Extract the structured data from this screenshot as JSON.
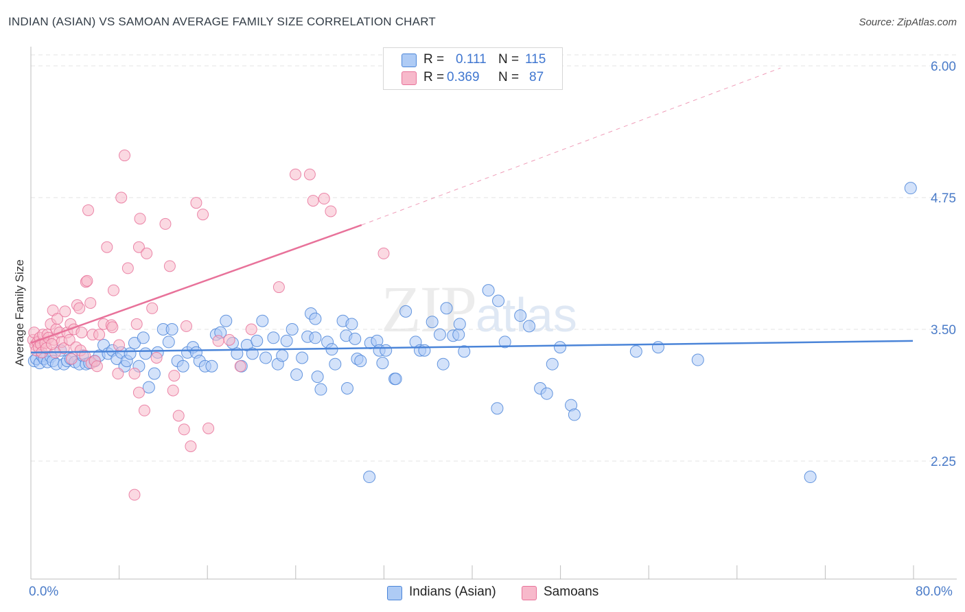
{
  "header": {
    "title": "INDIAN (ASIAN) VS SAMOAN AVERAGE FAMILY SIZE CORRELATION CHART",
    "source": "Source: ZipAtlas.com"
  },
  "watermark": {
    "zip": "ZIP",
    "atlas": "atlas"
  },
  "stats": [
    {
      "r_label": "R =",
      "r_value": "0.111",
      "n_label": "N =",
      "n_value": "115",
      "color": "#aecbf5"
    },
    {
      "r_label": "R =",
      "r_value": "0.369",
      "n_label": "N =",
      "n_value": "87",
      "color": "#f7b9cb"
    }
  ],
  "legend": [
    {
      "label": "Indians (Asian)",
      "color": "#aecbf5"
    },
    {
      "label": "Samoans",
      "color": "#f7b9cb"
    }
  ],
  "axes": {
    "x_min_label": "0.0%",
    "x_max_label": "80.0%",
    "y_label": "Average Family Size",
    "y_ticks": [
      "6.00",
      "4.75",
      "3.50",
      "2.25"
    ]
  },
  "chart_data": {
    "type": "scatter",
    "title": "INDIAN (ASIAN) VS SAMOAN AVERAGE FAMILY SIZE CORRELATION CHART",
    "xlabel": "",
    "ylabel": "Average Family Size",
    "xlim": [
      0,
      80
    ],
    "ylim": [
      1.0,
      6.1
    ],
    "y_ticks": [
      2.25,
      3.5,
      4.75,
      6.0
    ],
    "grid": "horizontal dashed",
    "legend_position": "bottom-center",
    "series": [
      {
        "name": "Indians (Asian)",
        "color": "#4a84d8",
        "fill": "#aecbf5",
        "trend": {
          "x": [
            0,
            80
          ],
          "y": [
            3.28,
            3.39
          ],
          "style": "solid"
        },
        "points": [
          [
            0.3,
            3.2
          ],
          [
            0.5,
            3.22
          ],
          [
            0.8,
            3.18
          ],
          [
            1.0,
            3.25
          ],
          [
            1.2,
            3.22
          ],
          [
            1.5,
            3.19
          ],
          [
            1.8,
            3.24
          ],
          [
            2.0,
            3.2
          ],
          [
            2.3,
            3.17
          ],
          [
            2.7,
            3.3
          ],
          [
            3.0,
            3.17
          ],
          [
            3.3,
            3.2
          ],
          [
            3.6,
            3.22
          ],
          [
            4.0,
            3.19
          ],
          [
            4.4,
            3.17
          ],
          [
            4.7,
            3.25
          ],
          [
            5.0,
            3.17
          ],
          [
            5.3,
            3.18
          ],
          [
            5.8,
            3.2
          ],
          [
            6.2,
            3.25
          ],
          [
            6.6,
            3.35
          ],
          [
            7.0,
            3.27
          ],
          [
            7.4,
            3.3
          ],
          [
            7.8,
            3.22
          ],
          [
            8.2,
            3.28
          ],
          [
            8.5,
            3.15
          ],
          [
            8.7,
            3.2
          ],
          [
            9.0,
            3.27
          ],
          [
            9.4,
            3.37
          ],
          [
            9.8,
            3.15
          ],
          [
            10.2,
            3.42
          ],
          [
            10.4,
            3.27
          ],
          [
            10.7,
            2.95
          ],
          [
            11.2,
            3.08
          ],
          [
            11.5,
            3.28
          ],
          [
            12.0,
            3.5
          ],
          [
            12.5,
            3.38
          ],
          [
            12.8,
            3.5
          ],
          [
            13.3,
            3.2
          ],
          [
            13.8,
            3.15
          ],
          [
            14.2,
            3.28
          ],
          [
            14.7,
            3.33
          ],
          [
            15.0,
            3.28
          ],
          [
            15.3,
            3.2
          ],
          [
            15.8,
            3.15
          ],
          [
            16.4,
            3.15
          ],
          [
            16.8,
            3.45
          ],
          [
            17.2,
            3.47
          ],
          [
            17.7,
            3.58
          ],
          [
            18.3,
            3.37
          ],
          [
            18.7,
            3.27
          ],
          [
            19.1,
            3.15
          ],
          [
            19.6,
            3.35
          ],
          [
            20.1,
            3.27
          ],
          [
            20.5,
            3.39
          ],
          [
            21.0,
            3.58
          ],
          [
            21.3,
            3.23
          ],
          [
            22.0,
            3.42
          ],
          [
            22.4,
            3.17
          ],
          [
            22.8,
            3.25
          ],
          [
            23.2,
            3.39
          ],
          [
            23.7,
            3.5
          ],
          [
            24.1,
            3.07
          ],
          [
            24.6,
            3.23
          ],
          [
            25.1,
            3.43
          ],
          [
            25.4,
            3.65
          ],
          [
            25.8,
            3.6
          ],
          [
            25.8,
            3.42
          ],
          [
            26.0,
            3.05
          ],
          [
            26.3,
            2.93
          ],
          [
            26.9,
            3.38
          ],
          [
            27.3,
            3.31
          ],
          [
            27.6,
            3.17
          ],
          [
            28.3,
            3.58
          ],
          [
            28.6,
            3.44
          ],
          [
            28.7,
            2.94
          ],
          [
            29.1,
            3.55
          ],
          [
            29.4,
            3.41
          ],
          [
            29.6,
            3.22
          ],
          [
            29.9,
            3.2
          ],
          [
            30.7,
            2.1
          ],
          [
            30.8,
            3.37
          ],
          [
            31.4,
            3.39
          ],
          [
            31.9,
            3.18
          ],
          [
            31.6,
            3.3
          ],
          [
            32.2,
            3.3
          ],
          [
            33.0,
            3.03
          ],
          [
            33.1,
            3.03
          ],
          [
            34.0,
            3.67
          ],
          [
            34.9,
            3.38
          ],
          [
            35.3,
            3.3
          ],
          [
            35.7,
            3.3
          ],
          [
            36.4,
            3.57
          ],
          [
            37.1,
            3.45
          ],
          [
            37.4,
            3.17
          ],
          [
            37.7,
            3.7
          ],
          [
            38.3,
            3.44
          ],
          [
            38.8,
            3.45
          ],
          [
            38.9,
            3.55
          ],
          [
            39.3,
            3.29
          ],
          [
            41.5,
            3.87
          ],
          [
            42.3,
            2.75
          ],
          [
            42.4,
            3.77
          ],
          [
            43.0,
            3.38
          ],
          [
            44.4,
            3.63
          ],
          [
            45.2,
            3.53
          ],
          [
            46.2,
            2.94
          ],
          [
            46.8,
            2.89
          ],
          [
            47.3,
            3.17
          ],
          [
            48.0,
            3.33
          ],
          [
            49.0,
            2.78
          ],
          [
            49.3,
            2.69
          ],
          [
            54.9,
            3.29
          ],
          [
            56.9,
            3.33
          ],
          [
            60.5,
            3.21
          ],
          [
            70.7,
            2.1
          ],
          [
            79.8,
            4.84
          ]
        ]
      },
      {
        "name": "Samoans",
        "color": "#e8729a",
        "fill": "#f7b9cb",
        "trend": {
          "x": [
            0,
            30.0
          ],
          "y": [
            3.37,
            4.49
          ],
          "style": "solid",
          "extension": {
            "x": [
              30.0,
              68.0
            ],
            "y": [
              4.49,
              5.98
            ],
            "style": "dashed"
          }
        },
        "points": [
          [
            0.2,
            3.4
          ],
          [
            0.3,
            3.47
          ],
          [
            0.4,
            3.35
          ],
          [
            0.5,
            3.3
          ],
          [
            0.6,
            3.38
          ],
          [
            0.7,
            3.33
          ],
          [
            0.8,
            3.42
          ],
          [
            0.9,
            3.36
          ],
          [
            1.0,
            3.28
          ],
          [
            1.1,
            3.45
          ],
          [
            1.3,
            3.37
          ],
          [
            1.4,
            3.32
          ],
          [
            1.5,
            3.45
          ],
          [
            1.6,
            3.42
          ],
          [
            1.8,
            3.55
          ],
          [
            2.0,
            3.68
          ],
          [
            2.1,
            3.4
          ],
          [
            2.3,
            3.5
          ],
          [
            2.4,
            3.6
          ],
          [
            2.6,
            3.47
          ],
          [
            2.8,
            3.38
          ],
          [
            3.0,
            3.32
          ],
          [
            3.1,
            3.67
          ],
          [
            3.3,
            3.47
          ],
          [
            3.5,
            3.4
          ],
          [
            3.6,
            3.55
          ],
          [
            3.7,
            3.22
          ],
          [
            3.9,
            3.5
          ],
          [
            4.1,
            3.33
          ],
          [
            4.2,
            3.73
          ],
          [
            4.4,
            3.7
          ],
          [
            4.5,
            3.3
          ],
          [
            4.6,
            3.47
          ],
          [
            4.9,
            3.25
          ],
          [
            5.0,
            3.95
          ],
          [
            5.1,
            3.96
          ],
          [
            5.2,
            4.63
          ],
          [
            5.4,
            3.75
          ],
          [
            5.5,
            3.18
          ],
          [
            5.6,
            3.45
          ],
          [
            5.8,
            3.2
          ],
          [
            6.0,
            3.15
          ],
          [
            6.2,
            3.45
          ],
          [
            6.6,
            3.55
          ],
          [
            6.9,
            4.28
          ],
          [
            7.3,
            3.54
          ],
          [
            7.4,
            3.52
          ],
          [
            7.5,
            3.87
          ],
          [
            7.9,
            3.08
          ],
          [
            8.0,
            3.35
          ],
          [
            8.2,
            4.75
          ],
          [
            8.5,
            5.15
          ],
          [
            8.8,
            4.08
          ],
          [
            9.4,
            3.08
          ],
          [
            9.6,
            3.55
          ],
          [
            9.8,
            4.28
          ],
          [
            9.9,
            4.55
          ],
          [
            9.8,
            2.9
          ],
          [
            10.3,
            2.73
          ],
          [
            10.5,
            4.22
          ],
          [
            11.0,
            3.7
          ],
          [
            11.4,
            3.23
          ],
          [
            12.2,
            4.5
          ],
          [
            12.6,
            4.1
          ],
          [
            12.9,
            2.92
          ],
          [
            13.0,
            3.06
          ],
          [
            13.4,
            2.68
          ],
          [
            13.9,
            2.55
          ],
          [
            14.1,
            3.53
          ],
          [
            14.5,
            2.39
          ],
          [
            15.0,
            4.7
          ],
          [
            15.6,
            4.59
          ],
          [
            16.1,
            2.56
          ],
          [
            17.0,
            3.39
          ],
          [
            18.0,
            3.4
          ],
          [
            19.0,
            3.15
          ],
          [
            20.0,
            3.5
          ],
          [
            22.5,
            3.9
          ],
          [
            24.0,
            4.97
          ],
          [
            25.3,
            4.97
          ],
          [
            25.6,
            4.72
          ],
          [
            26.6,
            4.74
          ],
          [
            27.2,
            4.62
          ],
          [
            32.0,
            4.22
          ],
          [
            9.4,
            1.93
          ],
          [
            2.2,
            3.28
          ],
          [
            1.9,
            3.36
          ]
        ]
      }
    ]
  }
}
